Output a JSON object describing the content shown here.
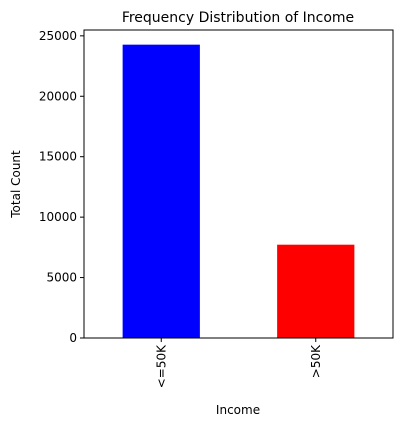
{
  "chart_data": {
    "type": "bar",
    "title": "Frequency Distribution of Income",
    "xlabel": "Income",
    "ylabel": "Total Count",
    "categories": [
      "<=50K",
      ">50K"
    ],
    "values": [
      24270,
      7720
    ],
    "colors": [
      "#0000ff",
      "#ff0000"
    ],
    "ylim": [
      0,
      25483
    ],
    "yticks": [
      0,
      5000,
      10000,
      15000,
      20000,
      25000
    ],
    "ytick_labels": [
      "0",
      "5000",
      "10000",
      "15000",
      "20000",
      "25000"
    ],
    "grid": false,
    "legend": "none"
  }
}
